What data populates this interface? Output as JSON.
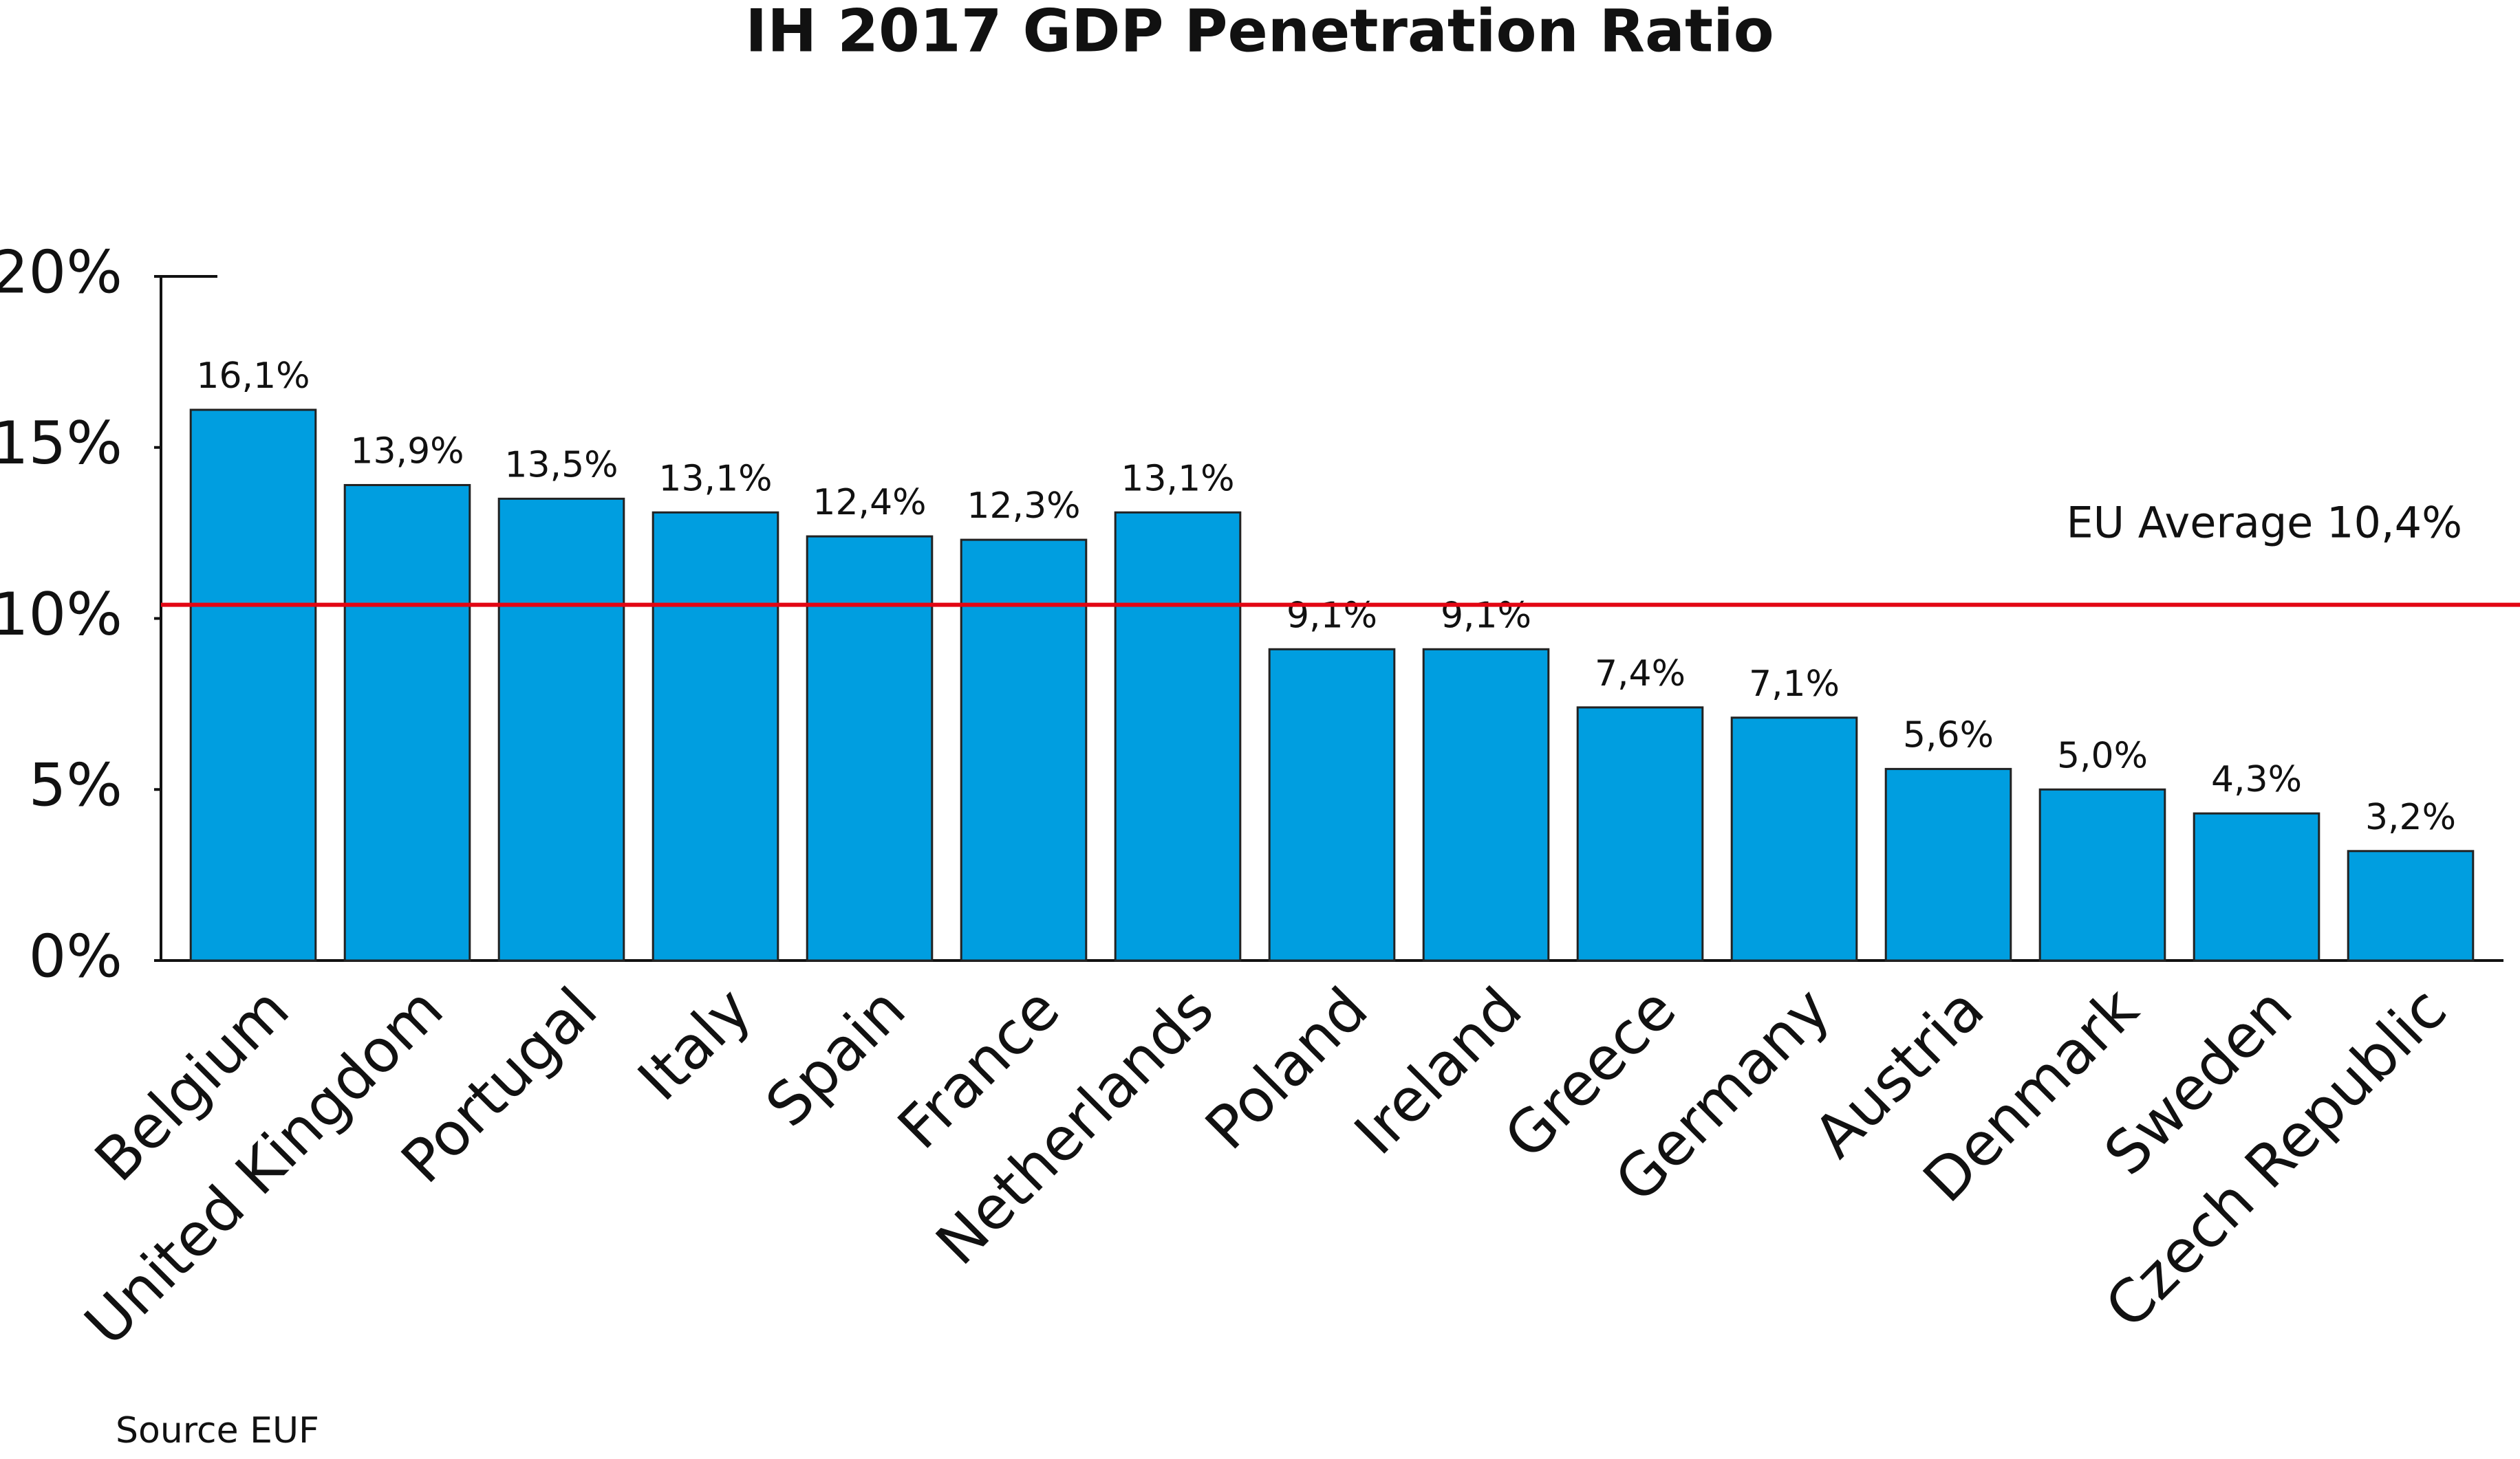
{
  "chart_data": {
    "type": "bar",
    "title": "IH 2017 GDP Penetration Ratio",
    "categories": [
      "Belgium",
      "United Kingdom",
      "Portugal",
      "Italy",
      "Spain",
      "France",
      "Netherlands",
      "Poland",
      "Ireland",
      "Greece",
      "Germany",
      "Austria",
      "Denmark",
      "Sweden",
      "Czech Republic"
    ],
    "values": [
      16.1,
      13.9,
      13.5,
      13.1,
      12.4,
      12.3,
      13.1,
      9.1,
      9.1,
      7.4,
      7.1,
      5.6,
      5.0,
      4.3,
      3.2
    ],
    "value_labels": [
      "16,1%",
      "13,9%",
      "13,5%",
      "13,1%",
      "12,4%",
      "12,3%",
      "13,1%",
      "9,1%",
      "9,1%",
      "7,4%",
      "7,1%",
      "5,6%",
      "5,0%",
      "4,3%",
      "3,2%"
    ],
    "color": "#009ee0",
    "ylim": [
      0,
      20
    ],
    "yticks": [
      {
        "value": 0,
        "label": "0%"
      },
      {
        "value": 5,
        "label": "5%"
      },
      {
        "value": 10,
        "label": "10%"
      },
      {
        "value": 15,
        "label": "15%"
      },
      {
        "value": 20,
        "label": "20%"
      }
    ],
    "grid": false,
    "reference_line": {
      "value": 10.4,
      "label": "EU Average 10,4%",
      "color": "#e30613"
    },
    "source": "Source EUF"
  }
}
